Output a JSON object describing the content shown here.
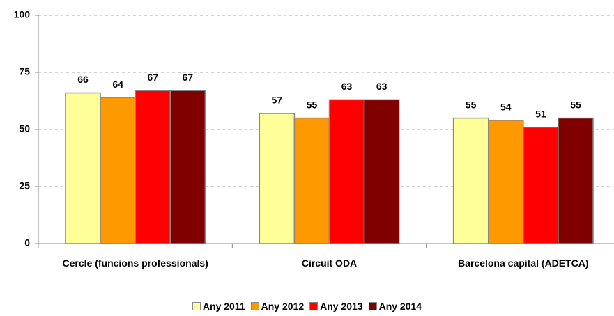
{
  "chart_data": {
    "type": "bar",
    "categories": [
      "Cercle (funcions professionals)",
      "Circuit ODA",
      "Barcelona capital (ADETCA)"
    ],
    "series": [
      {
        "name": "Any 2011",
        "color": "#ffff99",
        "values": [
          66,
          57,
          55
        ]
      },
      {
        "name": "Any 2012",
        "color": "#ff9900",
        "values": [
          64,
          55,
          54
        ]
      },
      {
        "name": "Any 2013",
        "color": "#ff0000",
        "values": [
          67,
          63,
          51
        ]
      },
      {
        "name": "Any 2014",
        "color": "#800000",
        "values": [
          67,
          63,
          55
        ]
      }
    ],
    "ylim": [
      0,
      100
    ],
    "yticks": [
      0,
      25,
      50,
      75,
      100
    ],
    "grid": true,
    "legend": "bottom"
  }
}
